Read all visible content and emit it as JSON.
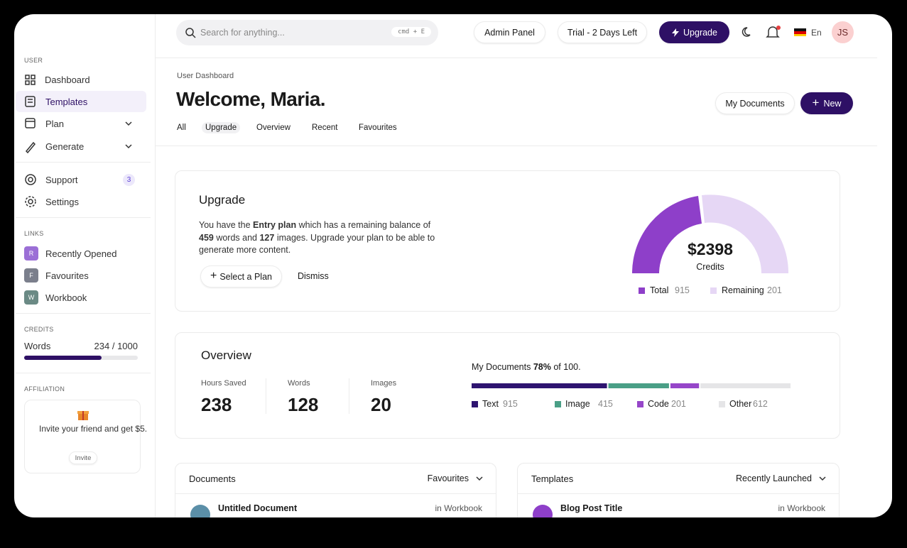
{
  "search": {
    "placeholder": "Search for anything...",
    "shortcut": "cmd + E"
  },
  "topbar": {
    "admin": "Admin Panel",
    "trial": "Trial - 2 Days Left",
    "upgrade": "Upgrade",
    "language": "En",
    "avatar": "JS"
  },
  "sidebar": {
    "user_heading": "USER",
    "user_items": [
      "Dashboard",
      "Templates",
      "Plan",
      "Generate"
    ],
    "support": "Support",
    "support_badge": "3",
    "settings": "Settings",
    "links_heading": "LINKS",
    "links": [
      {
        "icon": "R",
        "label": "Recently Opened",
        "color": "#9b6fd6"
      },
      {
        "icon": "F",
        "label": "Favourites",
        "color": "#7b7f8c"
      },
      {
        "icon": "W",
        "label": "Workbook",
        "color": "#6b8a85"
      }
    ],
    "credits_heading": "CREDITS",
    "credits_label": "Words",
    "credits_value": "234 / 1000",
    "affiliation_heading": "AFFILIATION",
    "invite_text": "Invite your friend and get $5.",
    "invite_button": "Invite"
  },
  "page": {
    "breadcrumb": "User Dashboard",
    "title": "Welcome, Maria.",
    "tabs": [
      "All",
      "Upgrade",
      "Overview",
      "Recent",
      "Favourites"
    ],
    "my_documents": "My Documents",
    "new": "New"
  },
  "upgrade": {
    "title": "Upgrade",
    "text": [
      "You have the ",
      "Entry plan",
      " which has a remaining balance of ",
      "459",
      " words and ",
      "127",
      " images. Upgrade your plan to be able to generate more content."
    ],
    "select": "Select a Plan",
    "dismiss": "Dismiss",
    "gauge_value": "$2398",
    "gauge_label": "Credits",
    "legend": [
      {
        "name": "Total",
        "value": 915,
        "color": "#8e3fc9"
      },
      {
        "name": "Remaining",
        "value": 201,
        "color": "#e6d7f5"
      }
    ]
  },
  "overview": {
    "title": "Overview",
    "stats": [
      {
        "label": "Hours Saved",
        "value": 238
      },
      {
        "label": "Words",
        "value": 128
      },
      {
        "label": "Images",
        "value": 20
      }
    ],
    "docs_text": [
      "My Documents ",
      "78%",
      " of 100."
    ],
    "segments": [
      {
        "name": "Text",
        "value": 915,
        "color": "#2e1470"
      },
      {
        "name": "Image",
        "value": 415,
        "color": "#4a9f86"
      },
      {
        "name": "Code",
        "value": 201,
        "color": "#9646c9"
      },
      {
        "name": "Other",
        "value": 612,
        "color": "#e5e5e7"
      }
    ]
  },
  "documents": {
    "title": "Documents",
    "filter": "Favourites",
    "rows": [
      {
        "name": "Untitled Document",
        "location": "in Workbook"
      }
    ]
  },
  "templates": {
    "title": "Templates",
    "filter": "Recently Launched",
    "rows": [
      {
        "name": "Blog Post Title",
        "location": "in Workbook"
      }
    ]
  }
}
